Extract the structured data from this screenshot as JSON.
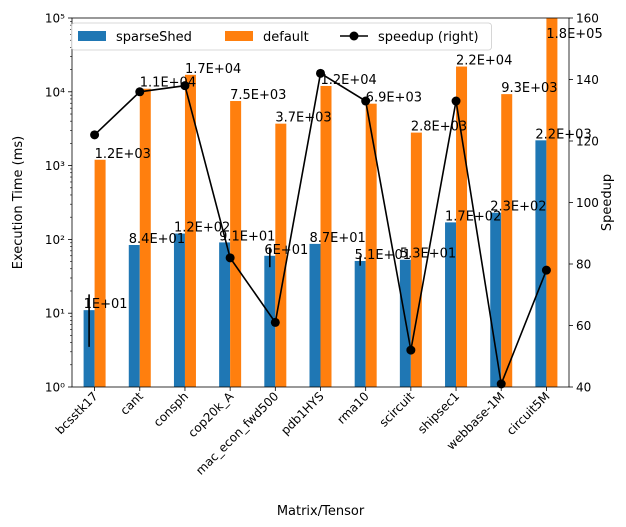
{
  "chart_data": {
    "type": "bar",
    "xlabel": "Matrix/Tensor",
    "ylabel": "Execution Time (ms)",
    "y2label": "Speedup",
    "yscale": "log",
    "ylim": [
      1,
      100000
    ],
    "y2lim": [
      40,
      160
    ],
    "yticks": [
      "10⁰",
      "10¹",
      "10²",
      "10³",
      "10⁴",
      "10⁵"
    ],
    "y2ticks": [
      "40",
      "60",
      "80",
      "100",
      "120",
      "140",
      "160"
    ],
    "legend_position": "top",
    "categories": [
      "bcsstk17",
      "cant",
      "consph",
      "cop20k_A",
      "mac_econ_fwd500",
      "pdb1HYS",
      "rma10",
      "scircuit",
      "shipsec1",
      "webbase-1M",
      "circuit5M"
    ],
    "series": [
      {
        "name": "sparseShed",
        "color": "#1f77b4",
        "values": [
          11,
          84,
          120,
          91,
          60,
          87,
          51,
          53,
          170,
          230,
          2200
        ],
        "labels": [
          "1E+01",
          "8.4E+01",
          "1.2E+02",
          "9.1E+01",
          "6E+01",
          "8.7E+01",
          "5.1E+01",
          "5.3E+01",
          "1.7E+02",
          "2.3E+02",
          "2.2E+03"
        ],
        "error_low": [
          3.5,
          null,
          null,
          null,
          42,
          null,
          44,
          null,
          null,
          null,
          null
        ],
        "error_high": [
          18,
          null,
          null,
          null,
          78,
          null,
          60,
          null,
          null,
          null,
          null
        ]
      },
      {
        "name": "default",
        "color": "#ff7f0e",
        "values": [
          1200,
          11000,
          17000,
          7500,
          3700,
          12000,
          6900,
          2800,
          22000,
          9300,
          180000
        ],
        "labels": [
          "1.2E+03",
          "1.1E+04",
          "1.7E+04",
          "7.5E+03",
          "3.7E+03",
          "1.2E+04",
          "6.9E+03",
          "2.8E+03",
          "2.2E+04",
          "9.3E+03",
          "1.8E+05"
        ]
      },
      {
        "name": "speedup (right)",
        "color": "#000000",
        "axis": "right",
        "values": [
          122,
          136,
          138,
          82,
          61,
          142,
          133,
          52,
          133,
          41,
          78
        ]
      }
    ]
  }
}
